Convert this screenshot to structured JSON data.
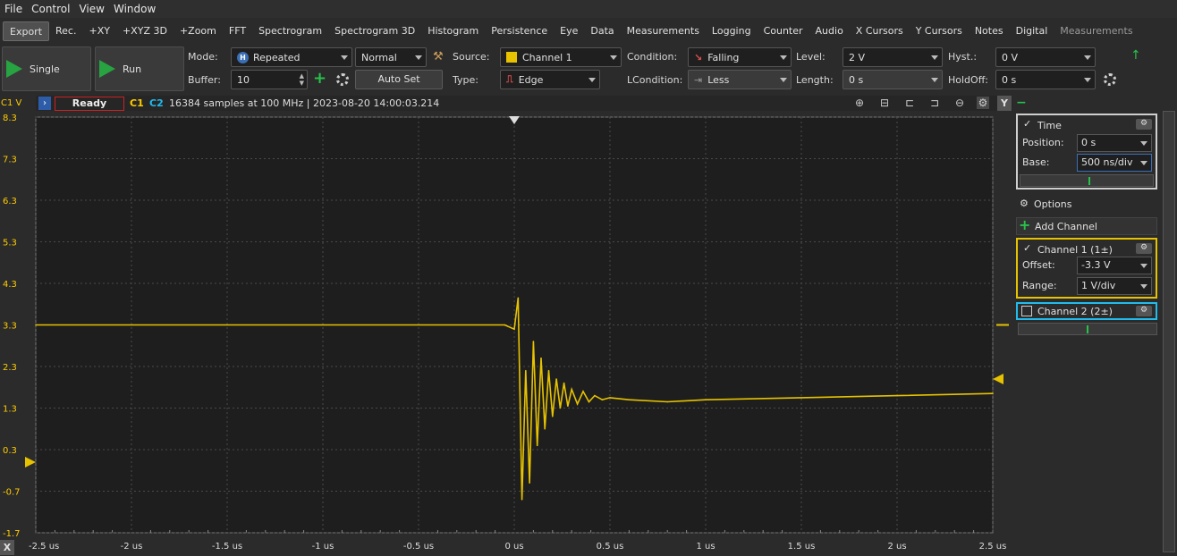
{
  "menu": [
    "File",
    "Control",
    "View",
    "Window"
  ],
  "tabs": [
    {
      "label": "Export",
      "state": "active"
    },
    {
      "label": "Rec.",
      "state": ""
    },
    {
      "label": "+XY",
      "state": ""
    },
    {
      "label": "+XYZ 3D",
      "state": ""
    },
    {
      "label": "+Zoom",
      "state": ""
    },
    {
      "label": "FFT",
      "state": ""
    },
    {
      "label": "Spectrogram",
      "state": ""
    },
    {
      "label": "Spectrogram 3D",
      "state": ""
    },
    {
      "label": "Histogram",
      "state": ""
    },
    {
      "label": "Persistence",
      "state": ""
    },
    {
      "label": "Eye",
      "state": ""
    },
    {
      "label": "Data",
      "state": ""
    },
    {
      "label": "Measurements",
      "state": ""
    },
    {
      "label": "Logging",
      "state": ""
    },
    {
      "label": "Counter",
      "state": ""
    },
    {
      "label": "Audio",
      "state": ""
    },
    {
      "label": "X Cursors",
      "state": ""
    },
    {
      "label": "Y Cursors",
      "state": ""
    },
    {
      "label": "Notes",
      "state": ""
    },
    {
      "label": "Digital",
      "state": ""
    },
    {
      "label": "Measurements",
      "state": "disabled"
    }
  ],
  "controls": {
    "single_label": "Single",
    "run_label": "Run",
    "mode_label": "Mode:",
    "mode_value": "Repeated",
    "mode_normal": "Normal",
    "buffer_label": "Buffer:",
    "buffer_value": "10",
    "autoset_label": "Auto Set",
    "source_label": "Source:",
    "source_value": "Channel 1",
    "type_label": "Type:",
    "type_value": "Edge",
    "condition_label": "Condition:",
    "condition_value": "Falling",
    "lcondition_label": "LCondition:",
    "lcondition_value": "Less",
    "level_label": "Level:",
    "level_value": "2 V",
    "length_label": "Length:",
    "length_value": "0 s",
    "hyst_label": "Hyst.:",
    "hyst_value": "0 V",
    "holdoff_label": "HoldOff:",
    "holdoff_value": "0 s",
    "channel1_color": "#e6c200"
  },
  "plot": {
    "y_unit_label": "C1 V",
    "status": "Ready",
    "c1": "C1",
    "c2": "C2",
    "sample_info": "16384 samples at 100 MHz | 2023-08-20 14:00:03.214",
    "x_button": "X",
    "y_button": "Y"
  },
  "panel": {
    "time_title": "Time",
    "position_label": "Position:",
    "position_value": "0 s",
    "base_label": "Base:",
    "base_value": "500 ns/div",
    "options_label": "Options",
    "add_channel_label": "Add Channel",
    "ch1_title": "Channel 1 (1±)",
    "offset_label": "Offset:",
    "offset_value": "-3.3 V",
    "range_label": "Range:",
    "range_value": "1 V/div",
    "ch2_title": "Channel 2 (2±)",
    "ch1_color": "#e6c200",
    "ch2_color": "#22bbee"
  },
  "chart_data": {
    "type": "line",
    "xlabel": "",
    "ylabel": "C1 V",
    "x_ticks": [
      "-2.5 us",
      "-2 us",
      "-1.5 us",
      "-1 us",
      "-0.5 us",
      "0 us",
      "0.5 us",
      "1 us",
      "1.5 us",
      "2 us",
      "2.5 us"
    ],
    "x_tick_values": [
      -2.5,
      -2.0,
      -1.5,
      -1.0,
      -0.5,
      0,
      0.5,
      1.0,
      1.5,
      2.0,
      2.5
    ],
    "y_ticks": [
      "8.3",
      "7.3",
      "6.3",
      "5.3",
      "4.3",
      "3.3",
      "2.3",
      "1.3",
      "0.3",
      "-0.7",
      "-1.7"
    ],
    "y_tick_values": [
      8.3,
      7.3,
      6.3,
      5.3,
      4.3,
      3.3,
      2.3,
      1.3,
      0.3,
      -0.7,
      -1.7
    ],
    "xlim": [
      -2.5,
      2.5
    ],
    "ylim": [
      -1.7,
      8.3
    ],
    "grid": true,
    "series": [
      {
        "color": "#e6c200",
        "x": [
          -2.5,
          -0.05,
          0.0,
          0.02,
          0.04,
          0.06,
          0.08,
          0.1,
          0.12,
          0.14,
          0.16,
          0.18,
          0.2,
          0.22,
          0.24,
          0.26,
          0.28,
          0.3,
          0.33,
          0.36,
          0.39,
          0.42,
          0.46,
          0.5,
          0.6,
          0.8,
          1.0,
          1.5,
          2.0,
          2.5
        ],
        "y": [
          3.3,
          3.3,
          3.2,
          3.95,
          -0.9,
          2.2,
          -0.5,
          2.9,
          0.4,
          2.5,
          0.8,
          2.2,
          1.1,
          2.0,
          1.3,
          1.9,
          1.35,
          1.75,
          1.4,
          1.7,
          1.45,
          1.6,
          1.5,
          1.55,
          1.5,
          1.45,
          1.5,
          1.55,
          1.6,
          1.65
        ]
      }
    ],
    "trigger_level": 2,
    "trigger_time": 0
  }
}
